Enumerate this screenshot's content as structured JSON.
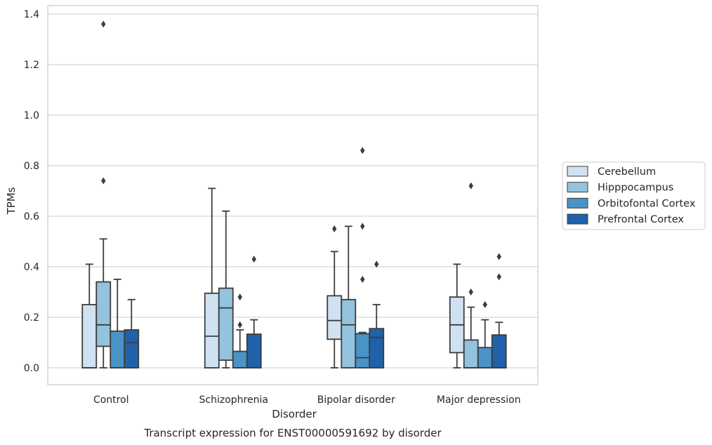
{
  "chart_data": {
    "type": "box",
    "title": "",
    "caption": "Transcript expression for ENST00000591692 by disorder",
    "xlabel": "Disorder",
    "ylabel": "TPMs",
    "ylim": [
      -0.065,
      1.43
    ],
    "yticks": [
      "0.0",
      "0.2",
      "0.4",
      "0.6",
      "0.8",
      "1.0",
      "1.2",
      "1.4"
    ],
    "grid": "horizontal",
    "legend_position": "right",
    "categories": [
      "Control",
      "Schizophrenia",
      "Bipolar disorder",
      "Major depression"
    ],
    "colors": {
      "Cerebellum": "#d0e1f1",
      "Hipppocampus": "#93c3de",
      "Orbitofontal Cortex": "#4a93c6",
      "Prefrontal Cortex": "#1f62a9"
    },
    "series": [
      {
        "name": "Cerebellum",
        "boxes": [
          {
            "min": 0.0,
            "q1": 0.0,
            "median": 0.0,
            "q3": 0.25,
            "max": 0.41,
            "outliers": []
          },
          {
            "min": 0.0,
            "q1": 0.0,
            "median": 0.125,
            "q3": 0.295,
            "max": 0.71,
            "outliers": []
          },
          {
            "min": 0.0,
            "q1": 0.113,
            "median": 0.187,
            "q3": 0.285,
            "max": 0.46,
            "outliers": [
              0.55
            ]
          },
          {
            "min": 0.0,
            "q1": 0.06,
            "median": 0.17,
            "q3": 0.28,
            "max": 0.41,
            "outliers": []
          }
        ]
      },
      {
        "name": "Hipppocampus",
        "boxes": [
          {
            "min": 0.0,
            "q1": 0.085,
            "median": 0.17,
            "q3": 0.34,
            "max": 0.51,
            "outliers": [
              0.74,
              1.36
            ]
          },
          {
            "min": 0.0,
            "q1": 0.03,
            "median": 0.237,
            "q3": 0.315,
            "max": 0.62,
            "outliers": []
          },
          {
            "min": 0.0,
            "q1": 0.0,
            "median": 0.17,
            "q3": 0.27,
            "max": 0.56,
            "outliers": []
          },
          {
            "min": 0.0,
            "q1": 0.0,
            "median": 0.0,
            "q3": 0.11,
            "max": 0.24,
            "outliers": [
              0.3,
              0.72
            ]
          }
        ]
      },
      {
        "name": "Orbitofontal Cortex",
        "boxes": [
          {
            "min": 0.0,
            "q1": 0.0,
            "median": 0.0,
            "q3": 0.145,
            "max": 0.35,
            "outliers": []
          },
          {
            "min": 0.0,
            "q1": 0.0,
            "median": 0.0,
            "q3": 0.065,
            "max": 0.15,
            "outliers": [
              0.17,
              0.28
            ]
          },
          {
            "min": 0.0,
            "q1": 0.0,
            "median": 0.04,
            "q3": 0.135,
            "max": 0.14,
            "outliers": [
              0.35,
              0.56,
              0.86
            ]
          },
          {
            "min": 0.0,
            "q1": 0.0,
            "median": 0.0,
            "q3": 0.08,
            "max": 0.19,
            "outliers": [
              0.25
            ]
          }
        ]
      },
      {
        "name": "Prefrontal Cortex",
        "boxes": [
          {
            "min": 0.0,
            "q1": 0.0,
            "median": 0.1,
            "q3": 0.15,
            "max": 0.27,
            "outliers": []
          },
          {
            "min": 0.0,
            "q1": 0.0,
            "median": 0.0,
            "q3": 0.133,
            "max": 0.19,
            "outliers": [
              0.43
            ]
          },
          {
            "min": 0.0,
            "q1": 0.0,
            "median": 0.12,
            "q3": 0.155,
            "max": 0.25,
            "outliers": [
              0.41
            ]
          },
          {
            "min": 0.0,
            "q1": 0.0,
            "median": 0.0,
            "q3": 0.13,
            "max": 0.18,
            "outliers": [
              0.36,
              0.44
            ]
          }
        ]
      }
    ]
  }
}
